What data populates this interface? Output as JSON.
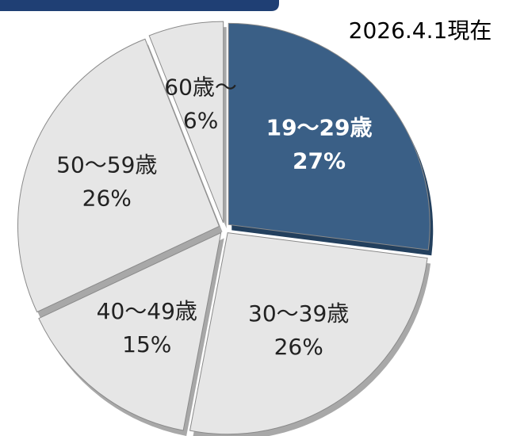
{
  "chart_data": {
    "type": "pie",
    "annotation": "2026.4.1現在",
    "categories": [
      "19～29歳",
      "30～39歳",
      "40～49歳",
      "50～59歳",
      "60歳～"
    ],
    "values": [
      27,
      26,
      15,
      26,
      6
    ],
    "value_labels": [
      "27%",
      "26%",
      "15%",
      "26%",
      "6%"
    ],
    "colors": [
      "#3a5f86",
      "#e6e6e6",
      "#e6e6e6",
      "#e6e6e6",
      "#e6e6e6"
    ],
    "label_colors": [
      "#ffffff",
      "#222222",
      "#222222",
      "#222222",
      "#222222"
    ]
  }
}
